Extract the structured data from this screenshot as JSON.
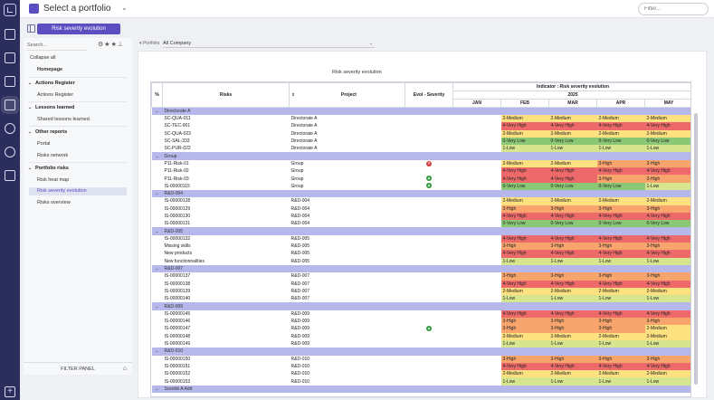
{
  "topbar": {
    "portfolio_title": "Select a portfolio",
    "filter_placeholder": "Filter..."
  },
  "subbar": {
    "tab_label": "Risk severity evolution"
  },
  "sidebar": {
    "search_placeholder": "Search...",
    "collapse_all": "Collapse all",
    "homepage": "Homepage",
    "sections": [
      {
        "label": "Actions Register",
        "items": [
          "Actions Register"
        ]
      },
      {
        "label": "Lessons learned",
        "items": [
          "Shared lessons learned"
        ]
      },
      {
        "label": "Other reports",
        "items": [
          "Portal",
          "Risks network"
        ]
      },
      {
        "label": "Portfolio risks",
        "items": [
          "Risk heat map",
          "Risk severity evolution",
          "Risks overview"
        ]
      }
    ],
    "filter_panel": "FILTER PANEL"
  },
  "main": {
    "portfolio_label": "Portfolio",
    "portfolio_value": "All Company",
    "report_title": "Risk severity evolution",
    "table": {
      "col_pct": "%",
      "col_risks": "Risks",
      "col_project": "Project",
      "col_evol": "Evol - Severity",
      "indicator": "Indicator : Risk severity evolution",
      "year": "2025",
      "months": [
        "JAN",
        "FEB",
        "MAR",
        "APR",
        "MAY"
      ],
      "groups": [
        {
          "name": "Directorate A",
          "rows": [
            {
              "risk": "SC-QUA-011",
              "project": "Directorate A",
              "evol": "",
              "sev": [
                "",
                "2-Medium",
                "2-Medium",
                "2-Medium",
                "2-Medium"
              ]
            },
            {
              "risk": "SC-TEC-001",
              "project": "Directorate A",
              "evol": "",
              "sev": [
                "",
                "4-Very High",
                "4-Very High",
                "4-Very High",
                "4-Very High"
              ]
            },
            {
              "risk": "SC-QUA-023",
              "project": "Directorate A",
              "evol": "",
              "sev": [
                "",
                "2-Medium",
                "2-Medium",
                "2-Medium",
                "2-Medium"
              ]
            },
            {
              "risk": "SC-SAL-333",
              "project": "Directorate A",
              "evol": "",
              "sev": [
                "",
                "0-Very Low",
                "0-Very Low",
                "0-Very Low",
                "0-Very Low"
              ]
            },
            {
              "risk": "SC-PUR-022",
              "project": "Directorate A",
              "evol": "",
              "sev": [
                "",
                "1-Low",
                "1-Low",
                "1-Low",
                "1-Low"
              ]
            }
          ]
        },
        {
          "name": "Group",
          "rows": [
            {
              "risk": "P11-Risk-01",
              "project": "Group",
              "evol": "down",
              "sev": [
                "",
                "2-Medium",
                "2-Medium",
                "3-High",
                "3-High"
              ]
            },
            {
              "risk": "P11-Risk-02",
              "project": "Group",
              "evol": "",
              "sev": [
                "",
                "4-Very High",
                "4-Very High",
                "4-Very High",
                "4-Very High"
              ]
            },
            {
              "risk": "P11-Risk-03",
              "project": "Group",
              "evol": "up",
              "sev": [
                "",
                "4-Very High",
                "4-Very High",
                "3-High",
                "3-High"
              ]
            },
            {
              "risk": "IS-00000115",
              "project": "Group",
              "evol": "up",
              "sev": [
                "",
                "0-Very Low",
                "0-Very Low",
                "0-Very Low",
                "1-Low"
              ]
            }
          ]
        },
        {
          "name": "R&D-004",
          "rows": [
            {
              "risk": "IS-00000128",
              "project": "R&D-004",
              "evol": "",
              "sev": [
                "",
                "2-Medium",
                "2-Medium",
                "2-Medium",
                "2-Medium"
              ]
            },
            {
              "risk": "IS-00000129",
              "project": "R&D-004",
              "evol": "",
              "sev": [
                "",
                "3-High",
                "3-High",
                "3-High",
                "3-High"
              ]
            },
            {
              "risk": "IS-00000130",
              "project": "R&D-004",
              "evol": "",
              "sev": [
                "",
                "4-Very High",
                "4-Very High",
                "4-Very High",
                "4-Very High"
              ]
            },
            {
              "risk": "IS-00000131",
              "project": "R&D-004",
              "evol": "",
              "sev": [
                "",
                "0-Very Low",
                "0-Very Low",
                "0-Very Low",
                "0-Very Low"
              ]
            }
          ]
        },
        {
          "name": "R&D-005",
          "rows": [
            {
              "risk": "IS-00000132",
              "project": "R&D-005",
              "evol": "",
              "sev": [
                "",
                "4-Very High",
                "4-Very High",
                "4-Very High",
                "4-Very High"
              ]
            },
            {
              "risk": "Missing skills",
              "project": "R&D-005",
              "evol": "",
              "sev": [
                "",
                "3-High",
                "3-High",
                "3-High",
                "3-High"
              ]
            },
            {
              "risk": "New products",
              "project": "R&D-005",
              "evol": "",
              "sev": [
                "",
                "4-Very High",
                "4-Very High",
                "4-Very High",
                "4-Very High"
              ]
            },
            {
              "risk": "New functionnalities",
              "project": "R&D-005",
              "evol": "",
              "sev": [
                "",
                "1-Low",
                "1-Low",
                "1-Low",
                "1-Low"
              ]
            }
          ]
        },
        {
          "name": "R&D-007",
          "rows": [
            {
              "risk": "IS-00000137",
              "project": "R&D-007",
              "evol": "",
              "sev": [
                "",
                "3-High",
                "3-High",
                "3-High",
                "3-High"
              ]
            },
            {
              "risk": "IS-00000138",
              "project": "R&D-007",
              "evol": "",
              "sev": [
                "",
                "4-Very High",
                "4-Very High",
                "4-Very High",
                "4-Very High"
              ]
            },
            {
              "risk": "IS-00000139",
              "project": "R&D-007",
              "evol": "",
              "sev": [
                "",
                "2-Medium",
                "2-Medium",
                "2-Medium",
                "2-Medium"
              ]
            },
            {
              "risk": "IS-00000140",
              "project": "R&D-007",
              "evol": "",
              "sev": [
                "",
                "1-Low",
                "1-Low",
                "1-Low",
                "1-Low"
              ]
            }
          ]
        },
        {
          "name": "R&D-009",
          "rows": [
            {
              "risk": "IS-00000145",
              "project": "R&D-009",
              "evol": "",
              "sev": [
                "",
                "4-Very High",
                "4-Very High",
                "4-Very High",
                "4-Very High"
              ]
            },
            {
              "risk": "IS-00000146",
              "project": "R&D-009",
              "evol": "",
              "sev": [
                "",
                "3-High",
                "3-High",
                "3-High",
                "3-High"
              ]
            },
            {
              "risk": "IS-00000147",
              "project": "R&D-009",
              "evol": "up",
              "sev": [
                "",
                "3-High",
                "3-High",
                "3-High",
                "2-Medium"
              ]
            },
            {
              "risk": "IS-00000148",
              "project": "R&D-009",
              "evol": "",
              "sev": [
                "",
                "2-Medium",
                "2-Medium",
                "2-Medium",
                "2-Medium"
              ]
            },
            {
              "risk": "IS-00000149",
              "project": "R&D-009",
              "evol": "",
              "sev": [
                "",
                "1-Low",
                "1-Low",
                "1-Low",
                "1-Low"
              ]
            }
          ]
        },
        {
          "name": "R&D-010",
          "rows": [
            {
              "risk": "IS-00000150",
              "project": "R&D-010",
              "evol": "",
              "sev": [
                "",
                "3-High",
                "3-High",
                "3-High",
                "3-High"
              ]
            },
            {
              "risk": "IS-00000151",
              "project": "R&D-010",
              "evol": "",
              "sev": [
                "",
                "4-Very High",
                "4-Very High",
                "4-Very High",
                "4-Very High"
              ]
            },
            {
              "risk": "IS-00000152",
              "project": "R&D-010",
              "evol": "",
              "sev": [
                "",
                "2-Medium",
                "2-Medium",
                "2-Medium",
                "2-Medium"
              ]
            },
            {
              "risk": "IS-00000153",
              "project": "R&D-010",
              "evol": "",
              "sev": [
                "",
                "1-Low",
                "1-Low",
                "1-Low",
                "1-Low"
              ]
            }
          ]
        },
        {
          "name": "Société A Add",
          "rows": []
        }
      ]
    }
  },
  "colors": {
    "accent": "#5b4ec0",
    "rail": "#2b2d5c",
    "group_row": "#b6b7ea",
    "sev_0_very_low": "#8bc875",
    "sev_1_low": "#d7e58f",
    "sev_2_medium": "#fde07f",
    "sev_3_high": "#f7a56d",
    "sev_4_very_high": "#ee6a6a"
  }
}
